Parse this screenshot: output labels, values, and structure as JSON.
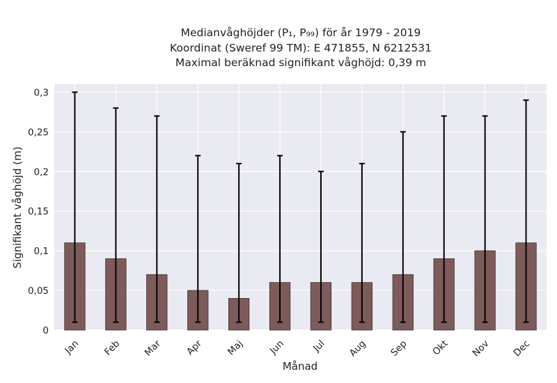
{
  "chart_data": {
    "type": "bar",
    "title_lines": [
      "Medianvåghöjder (P₁, P₉₉) för år 1979 - 2019",
      "Koordinat (Sweref 99 TM): E 471855, N 6212531",
      "Maximal beräknad signifikant våghöjd: 0,39 m"
    ],
    "xlabel": "Månad",
    "ylabel": "Signifikant våghöjd (m)",
    "categories": [
      "Jan",
      "Feb",
      "Mar",
      "Apr",
      "Maj",
      "Jun",
      "Jul",
      "Aug",
      "Sep",
      "Okt",
      "Nov",
      "Dec"
    ],
    "series": [
      {
        "values": [
          0.11,
          0.09,
          0.07,
          0.05,
          0.04,
          0.06,
          0.06,
          0.06,
          0.07,
          0.09,
          0.1,
          0.11
        ],
        "p1": [
          0.01,
          0.01,
          0.01,
          0.01,
          0.01,
          0.01,
          0.01,
          0.01,
          0.01,
          0.01,
          0.01,
          0.01
        ],
        "p99": [
          0.3,
          0.28,
          0.27,
          0.22,
          0.21,
          0.22,
          0.2,
          0.21,
          0.25,
          0.27,
          0.27,
          0.29
        ]
      }
    ],
    "ylim": [
      0,
      0.31
    ],
    "yticks": [
      0,
      0.05,
      0.1,
      0.15,
      0.2,
      0.25,
      0.3
    ],
    "ytick_labels": [
      "0",
      "0,05",
      "0,1",
      "0,15",
      "0,2",
      "0,25",
      "0,3"
    ],
    "grid": true,
    "colors": {
      "bar_fill": "#7e5b5b",
      "bar_edge": "#3f2e2e",
      "error_bar": "#000000",
      "plot_background": "#eaeaf2",
      "grid": "#ffffff"
    }
  }
}
